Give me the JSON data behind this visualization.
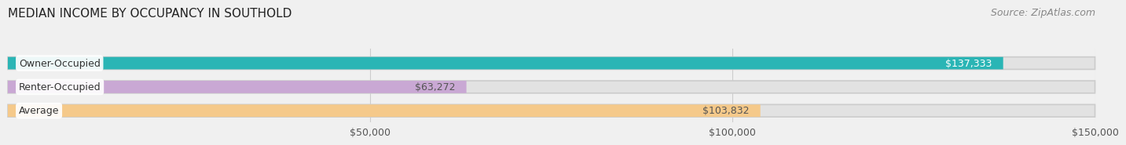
{
  "title": "MEDIAN INCOME BY OCCUPANCY IN SOUTHOLD",
  "source": "Source: ZipAtlas.com",
  "categories": [
    "Owner-Occupied",
    "Renter-Occupied",
    "Average"
  ],
  "values": [
    137333,
    63272,
    103832
  ],
  "bar_colors": [
    "#2ab5b5",
    "#c9a8d4",
    "#f5c98a"
  ],
  "bar_labels": [
    "$137,333",
    "$63,272",
    "$103,832"
  ],
  "xlim": [
    0,
    150000
  ],
  "xtick_labels": [
    "$50,000",
    "$100,000",
    "$150,000"
  ],
  "xtick_values": [
    50000,
    100000,
    150000
  ],
  "background_color": "#f0f0f0",
  "bar_bg_color": "#e2e2e2",
  "title_fontsize": 11,
  "label_fontsize": 9,
  "tick_fontsize": 9,
  "source_fontsize": 9
}
